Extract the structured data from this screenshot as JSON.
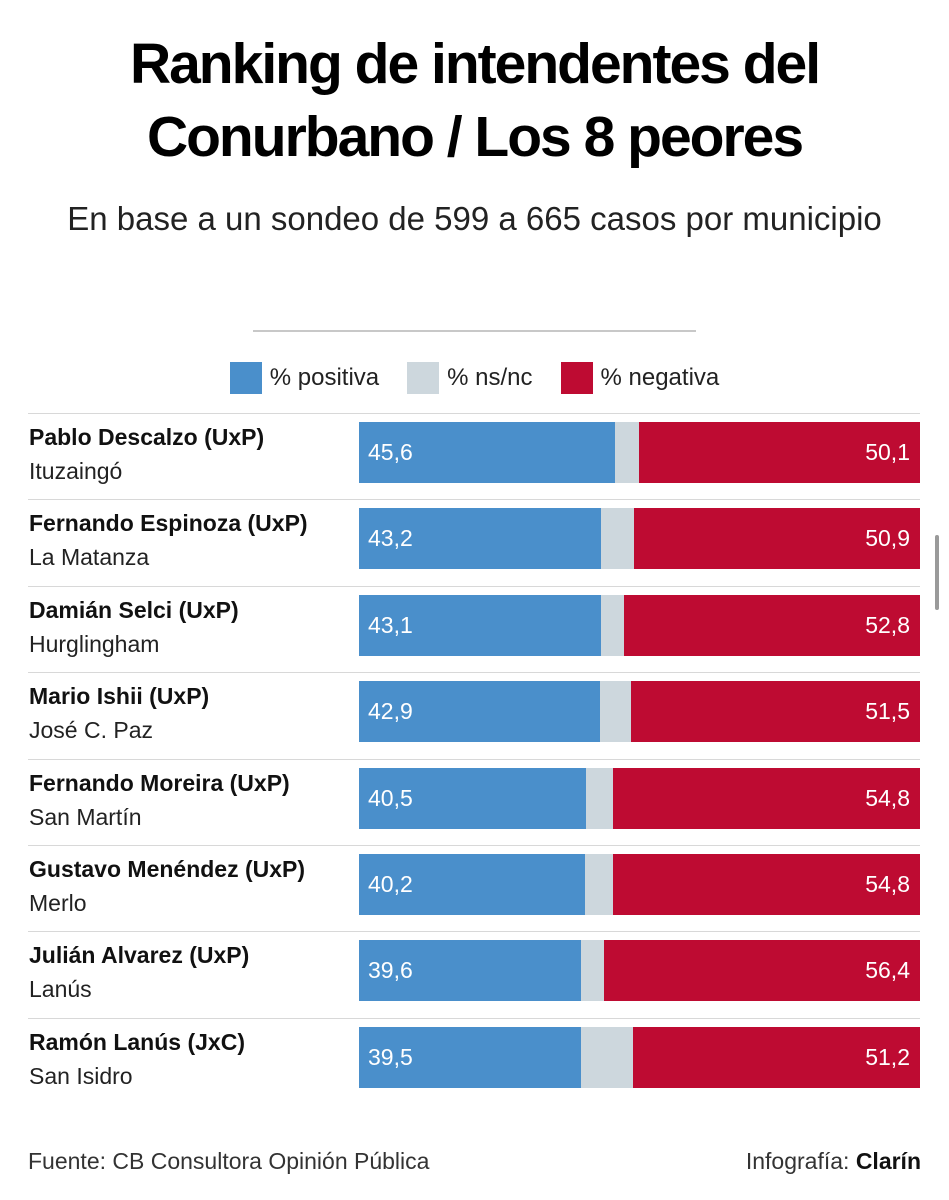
{
  "title_line1": "Ranking de intendentes del",
  "title_line2": "Conurbano / Los 8 peores",
  "subtitle": "En base a un sondeo de 599 a 665 casos por municipio",
  "colors": {
    "positive": "#4a8fcb",
    "nsnc": "#cdd7dd",
    "negative": "#be0b32"
  },
  "chart_data": {
    "type": "bar",
    "stacked": true,
    "orientation": "horizontal",
    "title": "Ranking de intendentes del Conurbano / Los 8 peores",
    "legend": [
      "% positiva",
      "% ns/nc",
      "% negativa"
    ],
    "legend_position": "top",
    "grid": false,
    "xlim": [
      0,
      100
    ],
    "categories": [
      {
        "name": "Pablo Descalzo (UxP)",
        "municipio": "Ituzaingó"
      },
      {
        "name": "Fernando Espinoza (UxP)",
        "municipio": "La Matanza"
      },
      {
        "name": "Damián Selci (UxP)",
        "municipio": "Hurglingham"
      },
      {
        "name": "Mario Ishii (UxP)",
        "municipio": "José C. Paz"
      },
      {
        "name": "Fernando Moreira (UxP)",
        "municipio": "San Martín"
      },
      {
        "name": "Gustavo Menéndez (UxP)",
        "municipio": "Merlo"
      },
      {
        "name": "Julián Alvarez (UxP)",
        "municipio": "Lanús"
      },
      {
        "name": "Ramón Lanús (JxC)",
        "municipio": "San Isidro"
      }
    ],
    "series": [
      {
        "name": "% positiva",
        "values": [
          "45,6",
          "43,2",
          "43,1",
          "42,9",
          "40,5",
          "40,2",
          "39,6",
          "39,5"
        ]
      },
      {
        "name": "% ns/nc",
        "values": [
          4.3,
          5.9,
          4.1,
          5.6,
          4.7,
          5.0,
          4.0,
          9.3
        ]
      },
      {
        "name": "% negativa",
        "values": [
          "50,1",
          "50,9",
          "52,8",
          "51,5",
          "54,8",
          "54,8",
          "56,4",
          "51,2"
        ]
      }
    ]
  },
  "footer": {
    "source": "Fuente: CB Consultora Opinión Pública",
    "credit_prefix": "Infografía:",
    "credit_brand": "Clarín"
  }
}
